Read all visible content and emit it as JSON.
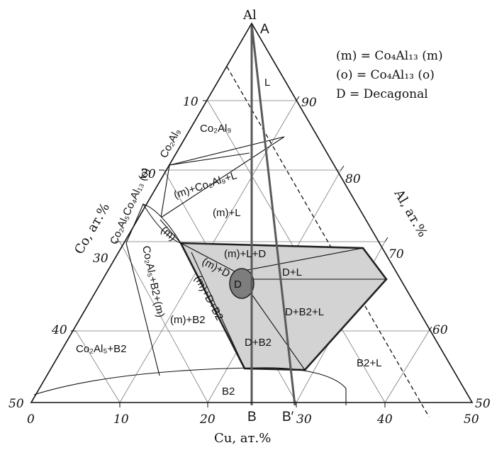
{
  "diagram": {
    "apex_label": "Al",
    "legend": {
      "line1": "(m) = Co₄Al₁₃ (m)",
      "line2": "(o) = Co₄Al₁₃ (o)",
      "line3": "D = Decagonal"
    },
    "axes": {
      "co_label": "Co, ат.%",
      "al_label": "Al, ат.%",
      "cu_label": "Cu, ат.%",
      "co_ticks": [
        "10",
        "20",
        "30",
        "40",
        "50"
      ],
      "al_ticks": [
        "90",
        "80",
        "70",
        "60",
        "50"
      ],
      "cu_ticks": [
        "0",
        "10",
        "20",
        "30",
        "40",
        "50"
      ]
    },
    "points": {
      "A": "A",
      "B": "B",
      "B_prime": "B′"
    },
    "regions": {
      "L": "L",
      "co2al9": "Co₂Al₉",
      "co2al9_edge": "Co₂Al₉",
      "m_co2al9_l": "(m)+Co₂Al₉+L",
      "m_l": "(m)+L",
      "co2al5_co4al13_o": "Co₂Al₅Co₄Al₁₃ (o)",
      "m_small": "(m)",
      "m_l_d": "(m)+L+D",
      "m_d_small": "(m)+D",
      "d": "D",
      "d_l": "D+L",
      "d_b2_l": "D+B2+L",
      "m_d_b2": "(m)+D+B2",
      "co2al5_b2_m": "Co₂Al₅+B2+(m)",
      "m_b2": "(m)+B2",
      "d_b2": "D+B2",
      "co2al5_b2": "Co₂Al₅+B2",
      "b2_l": "B2+L",
      "b2": "B2"
    }
  },
  "colors": {
    "shaded_region": "#d3d3d3",
    "decagonal_phase": "#7d7d7d",
    "lines": "#111111",
    "grid": "#7a7a7a"
  }
}
